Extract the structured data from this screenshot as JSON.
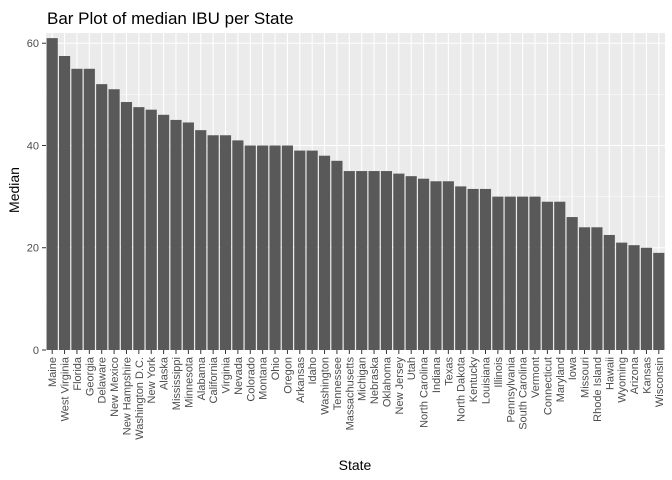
{
  "chart_data": {
    "type": "bar",
    "title": "Bar Plot of median IBU per State",
    "xlabel": "State",
    "ylabel": "Median",
    "ylim": [
      0,
      62
    ],
    "yticks": [
      0,
      20,
      40,
      60
    ],
    "grid": true,
    "bar_color": "#595959",
    "panel_color": "#ebebeb",
    "categories": [
      "Maine",
      "West Virginia",
      "Florida",
      "Georgia",
      "Delaware",
      "New Mexico",
      "New Hampshire",
      "Washington D.C.",
      "New York",
      "Alaska",
      "Mississippi",
      "Minnesota",
      "Alabama",
      "California",
      "Virginia",
      "Nevada",
      "Colorado",
      "Montana",
      "Ohio",
      "Oregon",
      "Arkansas",
      "Idaho",
      "Washington",
      "Tennessee",
      "Massachusetts",
      "Michigan",
      "Nebraska",
      "Oklahoma",
      "New Jersey",
      "Utah",
      "North Carolina",
      "Indiana",
      "Texas",
      "North Dakota",
      "Kentucky",
      "Louisiana",
      "Illinois",
      "Pennsylvania",
      "South Carolina",
      "Vermont",
      "Connecticut",
      "Maryland",
      "Iowa",
      "Missouri",
      "Rhode Island",
      "Hawaii",
      "Wyoming",
      "Arizona",
      "Kansas",
      "Wisconsin"
    ],
    "values": [
      61,
      57.5,
      55,
      55,
      52,
      51,
      48.5,
      47.5,
      47,
      46,
      45,
      44.5,
      43,
      42,
      42,
      41,
      40,
      40,
      40,
      40,
      39,
      39,
      38,
      37,
      35,
      35,
      35,
      35,
      34.5,
      34,
      33.5,
      33,
      33,
      32,
      31.5,
      31.5,
      30,
      30,
      30,
      30,
      29,
      29,
      26,
      24,
      24,
      22.5,
      21,
      20.5,
      20,
      19
    ]
  }
}
